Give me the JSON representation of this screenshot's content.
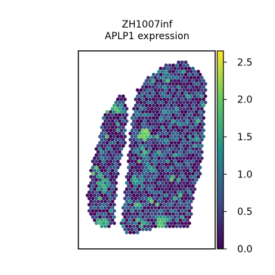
{
  "chart_data": {
    "type": "scatter",
    "title": "ZH1007inf",
    "subtitle": "APLP1 expression",
    "xlabel": "",
    "ylabel": "",
    "grid": false,
    "legend": "colorbar-right",
    "colormap": "viridis",
    "colormap_stops": [
      "#440154",
      "#3b528b",
      "#21918c",
      "#5ec962",
      "#fde725"
    ],
    "frame_color": "#000000",
    "colorbar": {
      "min": 0.0,
      "max": 2.65,
      "ticks": [
        0.0,
        0.5,
        1.0,
        1.5,
        2.0,
        2.5
      ],
      "tick_labels": [
        "0.0",
        "0.5",
        "1.0",
        "1.5",
        "2.0",
        "2.5"
      ]
    },
    "points_summary": "hexagonal spatial spots; most values 0.0-1.0, scattered hotspots 1.5-2.6"
  }
}
